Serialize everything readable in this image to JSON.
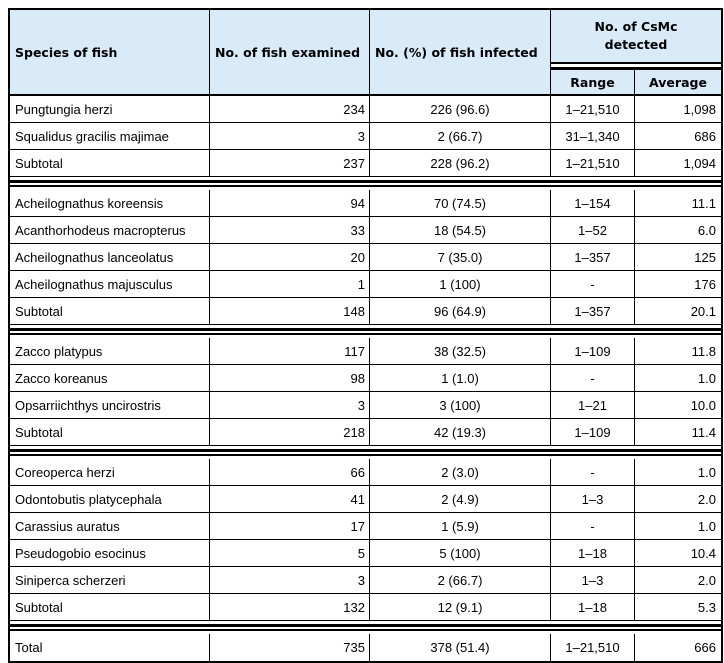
{
  "table": {
    "header": {
      "species": "Species of fish",
      "examined": "No. of fish examined",
      "infected": "No. (%) of fish infected",
      "csmc": "No. of CsMc detected",
      "range": "Range",
      "average": "Average"
    },
    "colors": {
      "header_bg": "#d9eaf9",
      "border": "#000000",
      "text": "#000000"
    },
    "rows": [
      {
        "species": "Pungtungia herzi",
        "examined": "234",
        "infected": "226 (96.6)",
        "range": "1–21,510",
        "average": "1,098"
      },
      {
        "species": "Squalidus gracilis majimae",
        "examined": "3",
        "infected": "2 (66.7)",
        "range": "31–1,340",
        "average": "686"
      },
      {
        "species": "Subtotal",
        "examined": "237",
        "infected": "228 (96.2)",
        "range": "1–21,510",
        "average": "1,094"
      },
      {
        "species": "Acheilognathus koreensis",
        "examined": "94",
        "infected": "70 (74.5)",
        "range": "1–154",
        "average": "11.1"
      },
      {
        "species": "Acanthorhodeus macropterus",
        "examined": "33",
        "infected": "18 (54.5)",
        "range": "1–52",
        "average": "6.0"
      },
      {
        "species": "Acheilognathus lanceolatus",
        "examined": "20",
        "infected": "7 (35.0)",
        "range": "1–357",
        "average": "125"
      },
      {
        "species": "Acheilognathus majusculus",
        "examined": "1",
        "infected": "1 (100)",
        "range": "-",
        "average": "176"
      },
      {
        "species": "Subtotal",
        "examined": "148",
        "infected": "96 (64.9)",
        "range": "1–357",
        "average": "20.1"
      },
      {
        "species": "Zacco platypus",
        "examined": "117",
        "infected": "38 (32.5)",
        "range": "1–109",
        "average": "11.8"
      },
      {
        "species": "Zacco koreanus",
        "examined": "98",
        "infected": "1 (1.0)",
        "range": "-",
        "average": "1.0"
      },
      {
        "species": "Opsarriichthys uncirostris",
        "examined": "3",
        "infected": "3 (100)",
        "range": "1–21",
        "average": "10.0"
      },
      {
        "species": "Subtotal",
        "examined": "218",
        "infected": "42 (19.3)",
        "range": "1–109",
        "average": "11.4"
      },
      {
        "species": "Coreoperca herzi",
        "examined": "66",
        "infected": "2 (3.0)",
        "range": "-",
        "average": "1.0"
      },
      {
        "species": "Odontobutis platycephala",
        "examined": "41",
        "infected": "2 (4.9)",
        "range": "1–3",
        "average": "2.0"
      },
      {
        "species": "Carassius auratus",
        "examined": "17",
        "infected": "1 (5.9)",
        "range": "-",
        "average": "1.0"
      },
      {
        "species": "Pseudogobio esocinus",
        "examined": "5",
        "infected": "5 (100)",
        "range": "1–18",
        "average": "10.4"
      },
      {
        "species": "Siniperca scherzeri",
        "examined": "3",
        "infected": "2 (66.7)",
        "range": "1–3",
        "average": "2.0"
      },
      {
        "species": "Subtotal",
        "examined": "132",
        "infected": "12 (9.1)",
        "range": "1–18",
        "average": "5.3"
      },
      {
        "species": "Total",
        "examined": "735",
        "infected": "378 (51.4)",
        "range": "1–21,510",
        "average": "666"
      }
    ]
  }
}
